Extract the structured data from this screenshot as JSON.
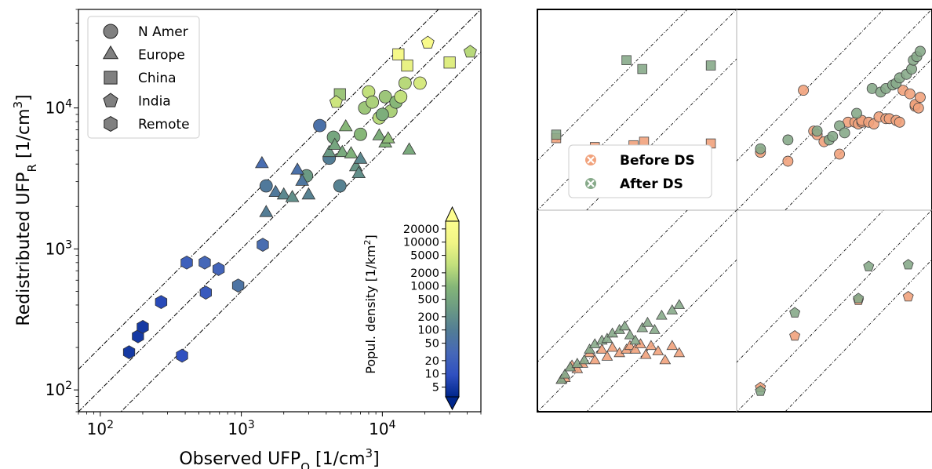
{
  "chart_data": [
    {
      "type": "scatter",
      "title": "",
      "xlabel": {
        "main": "Observed UFP",
        "sub": "O",
        "unit": " [1/cm",
        "sup": "3",
        "close": "]"
      },
      "ylabel": {
        "main": "Redistributed UFP",
        "sub": "R",
        "unit": " [1/cm",
        "sup": "3",
        "close": "]"
      },
      "x_scale": "log",
      "y_scale": "log",
      "xlim": [
        70,
        50000
      ],
      "ylim": [
        70,
        50000
      ],
      "x_ticks": [
        {
          "v": 100,
          "m": "10",
          "e": "2"
        },
        {
          "v": 1000,
          "m": "10",
          "e": "3"
        },
        {
          "v": 10000,
          "m": "10",
          "e": "4"
        }
      ],
      "y_ticks": [
        {
          "v": 100,
          "m": "10",
          "e": "2"
        },
        {
          "v": 1000,
          "m": "10",
          "e": "3"
        },
        {
          "v": 10000,
          "m": "10",
          "e": "4"
        }
      ],
      "grid": false,
      "reference_lines_ratio": [
        2,
        1,
        0.5
      ],
      "legend_position": "top-left",
      "legend": [
        {
          "label": "N Amer",
          "marker": "circle"
        },
        {
          "label": "Europe",
          "marker": "triangle"
        },
        {
          "label": "China",
          "marker": "square"
        },
        {
          "label": "India",
          "marker": "pentagon"
        },
        {
          "label": "Remote",
          "marker": "hexagon"
        }
      ],
      "colorbar": {
        "label": "Popul. density [1/km",
        "label_sup": "2",
        "label_close": "]",
        "scale": "log",
        "range": [
          3,
          30000
        ],
        "extend": "both",
        "ticks": [
          5,
          10,
          20,
          50,
          100,
          200,
          500,
          1000,
          2000,
          5000,
          10000,
          20000
        ],
        "colormap": [
          "#00268c",
          "#3050c0",
          "#4668b8",
          "#527c96",
          "#6b9a84",
          "#84b578",
          "#c2e07c",
          "#f0f585",
          "#fdfd8f"
        ]
      },
      "series": [
        {
          "name": "N Amer",
          "marker": "circle",
          "points": [
            {
              "x": 1500,
              "y": 2800,
              "d": 80
            },
            {
              "x": 2900,
              "y": 3300,
              "d": 300
            },
            {
              "x": 3600,
              "y": 7500,
              "d": 50
            },
            {
              "x": 4200,
              "y": 4400,
              "d": 100
            },
            {
              "x": 4500,
              "y": 6200,
              "d": 500
            },
            {
              "x": 5000,
              "y": 2800,
              "d": 120
            },
            {
              "x": 7000,
              "y": 6500,
              "d": 1000
            },
            {
              "x": 7500,
              "y": 10000,
              "d": 1500
            },
            {
              "x": 8000,
              "y": 13000,
              "d": 3000
            },
            {
              "x": 8500,
              "y": 11000,
              "d": 2000
            },
            {
              "x": 9500,
              "y": 8500,
              "d": 2500
            },
            {
              "x": 10500,
              "y": 12000,
              "d": 1500
            },
            {
              "x": 11500,
              "y": 9500,
              "d": 2000
            },
            {
              "x": 12500,
              "y": 11000,
              "d": 1000
            },
            {
              "x": 13500,
              "y": 12000,
              "d": 3000
            },
            {
              "x": 14500,
              "y": 15000,
              "d": 2500
            },
            {
              "x": 18500,
              "y": 15000,
              "d": 5000
            },
            {
              "x": 10000,
              "y": 9000,
              "d": 700
            }
          ]
        },
        {
          "name": "Europe",
          "marker": "triangle",
          "points": [
            {
              "x": 1400,
              "y": 4000,
              "d": 40
            },
            {
              "x": 1500,
              "y": 1800,
              "d": 100
            },
            {
              "x": 1750,
              "y": 2500,
              "d": 80
            },
            {
              "x": 2000,
              "y": 2400,
              "d": 150
            },
            {
              "x": 2300,
              "y": 2300,
              "d": 200
            },
            {
              "x": 2500,
              "y": 3600,
              "d": 50
            },
            {
              "x": 2700,
              "y": 3000,
              "d": 70
            },
            {
              "x": 3000,
              "y": 2400,
              "d": 120
            },
            {
              "x": 4200,
              "y": 4800,
              "d": 300
            },
            {
              "x": 4600,
              "y": 5400,
              "d": 500
            },
            {
              "x": 5200,
              "y": 4800,
              "d": 600
            },
            {
              "x": 5500,
              "y": 7300,
              "d": 1000
            },
            {
              "x": 6000,
              "y": 4700,
              "d": 800
            },
            {
              "x": 6500,
              "y": 3800,
              "d": 250
            },
            {
              "x": 6800,
              "y": 3400,
              "d": 200
            },
            {
              "x": 7000,
              "y": 4300,
              "d": 150
            },
            {
              "x": 9500,
              "y": 6300,
              "d": 700
            },
            {
              "x": 10500,
              "y": 5600,
              "d": 900
            },
            {
              "x": 11000,
              "y": 6000,
              "d": 1200
            },
            {
              "x": 15500,
              "y": 5000,
              "d": 600
            }
          ]
        },
        {
          "name": "China",
          "marker": "square",
          "points": [
            {
              "x": 5000,
              "y": 12500,
              "d": 1500
            },
            {
              "x": 13000,
              "y": 24000,
              "d": 15000
            },
            {
              "x": 15000,
              "y": 20000,
              "d": 8000
            },
            {
              "x": 30000,
              "y": 21000,
              "d": 6000
            }
          ]
        },
        {
          "name": "India",
          "marker": "pentagon",
          "points": [
            {
              "x": 4700,
              "y": 11000,
              "d": 4000
            },
            {
              "x": 21000,
              "y": 29000,
              "d": 20000
            },
            {
              "x": 42000,
              "y": 25000,
              "d": 2500
            }
          ]
        },
        {
          "name": "Remote",
          "marker": "hexagon",
          "points": [
            {
              "x": 160,
              "y": 185,
              "d": 5
            },
            {
              "x": 185,
              "y": 240,
              "d": 5
            },
            {
              "x": 200,
              "y": 280,
              "d": 5
            },
            {
              "x": 270,
              "y": 420,
              "d": 8
            },
            {
              "x": 380,
              "y": 175,
              "d": 10
            },
            {
              "x": 410,
              "y": 800,
              "d": 20
            },
            {
              "x": 550,
              "y": 800,
              "d": 30
            },
            {
              "x": 560,
              "y": 490,
              "d": 15
            },
            {
              "x": 690,
              "y": 720,
              "d": 25
            },
            {
              "x": 950,
              "y": 550,
              "d": 60
            },
            {
              "x": 1420,
              "y": 1070,
              "d": 40
            }
          ]
        }
      ]
    },
    {
      "type": "scatter",
      "title": "",
      "axes_shown": false,
      "legend_position": "center-left",
      "legend": [
        {
          "label": "Before DS",
          "color": "#f1a27c"
        },
        {
          "label": "After DS",
          "color": "#87aa8a"
        }
      ],
      "panels": [
        {
          "name": "China",
          "marker": "square",
          "before": [
            [
              0.04,
              0.34
            ],
            [
              0.26,
              0.29
            ],
            [
              0.48,
              0.3
            ],
            [
              0.54,
              0.32
            ],
            [
              0.92,
              0.31
            ]
          ],
          "after": [
            [
              0.04,
              0.36
            ],
            [
              0.26,
              0.26
            ],
            [
              0.44,
              0.78
            ],
            [
              0.53,
              0.73
            ],
            [
              0.92,
              0.75
            ]
          ]
        },
        {
          "name": "N Amer",
          "marker": "circle",
          "before": [
            [
              0.07,
              0.26
            ],
            [
              0.23,
              0.21
            ],
            [
              0.32,
              0.61
            ],
            [
              0.38,
              0.38
            ],
            [
              0.4,
              0.36
            ],
            [
              0.44,
              0.32
            ],
            [
              0.53,
              0.25
            ],
            [
              0.58,
              0.43
            ],
            [
              0.62,
              0.43
            ],
            [
              0.64,
              0.42
            ],
            [
              0.66,
              0.43
            ],
            [
              0.66,
              0.44
            ],
            [
              0.7,
              0.43
            ],
            [
              0.73,
              0.42
            ],
            [
              0.76,
              0.46
            ],
            [
              0.8,
              0.45
            ],
            [
              0.82,
              0.45
            ],
            [
              0.86,
              0.44
            ],
            [
              0.88,
              0.43
            ],
            [
              0.9,
              0.61
            ],
            [
              0.94,
              0.59
            ],
            [
              0.97,
              0.52
            ],
            [
              0.97,
              0.53
            ],
            [
              0.99,
              0.51
            ],
            [
              1.0,
              0.57
            ]
          ],
          "after": [
            [
              0.07,
              0.28
            ],
            [
              0.23,
              0.33
            ],
            [
              0.4,
              0.38
            ],
            [
              0.47,
              0.33
            ],
            [
              0.49,
              0.35
            ],
            [
              0.53,
              0.41
            ],
            [
              0.56,
              0.37
            ],
            [
              0.63,
              0.48
            ],
            [
              0.72,
              0.62
            ],
            [
              0.77,
              0.6
            ],
            [
              0.8,
              0.62
            ],
            [
              0.84,
              0.64
            ],
            [
              0.86,
              0.65
            ],
            [
              0.88,
              0.68
            ],
            [
              0.92,
              0.7
            ],
            [
              0.95,
              0.73
            ],
            [
              0.96,
              0.78
            ],
            [
              0.98,
              0.8
            ],
            [
              1.0,
              0.83
            ]
          ]
        },
        {
          "name": "Europe",
          "marker": "triangle",
          "before": [
            [
              0.07,
              0.11
            ],
            [
              0.09,
              0.12
            ],
            [
              0.13,
              0.19
            ],
            [
              0.16,
              0.17
            ],
            [
              0.19,
              0.2
            ],
            [
              0.23,
              0.26
            ],
            [
              0.26,
              0.22
            ],
            [
              0.3,
              0.28
            ],
            [
              0.33,
              0.24
            ],
            [
              0.36,
              0.29
            ],
            [
              0.4,
              0.26
            ],
            [
              0.44,
              0.28
            ],
            [
              0.46,
              0.3
            ],
            [
              0.49,
              0.28
            ],
            [
              0.52,
              0.31
            ],
            [
              0.55,
              0.25
            ],
            [
              0.58,
              0.3
            ],
            [
              0.62,
              0.27
            ],
            [
              0.66,
              0.22
            ],
            [
              0.7,
              0.3
            ],
            [
              0.74,
              0.26
            ]
          ],
          "after": [
            [
              0.07,
              0.11
            ],
            [
              0.09,
              0.14
            ],
            [
              0.12,
              0.18
            ],
            [
              0.16,
              0.2
            ],
            [
              0.2,
              0.22
            ],
            [
              0.23,
              0.28
            ],
            [
              0.26,
              0.31
            ],
            [
              0.3,
              0.33
            ],
            [
              0.33,
              0.34
            ],
            [
              0.36,
              0.37
            ],
            [
              0.4,
              0.39
            ],
            [
              0.43,
              0.41
            ],
            [
              0.46,
              0.36
            ],
            [
              0.49,
              0.33
            ],
            [
              0.53,
              0.4
            ],
            [
              0.56,
              0.43
            ],
            [
              0.6,
              0.39
            ],
            [
              0.64,
              0.47
            ],
            [
              0.7,
              0.5
            ],
            [
              0.74,
              0.53
            ]
          ]
        },
        {
          "name": "India",
          "marker": "pentagon",
          "before": [
            [
              0.07,
              0.07
            ],
            [
              0.27,
              0.36
            ],
            [
              0.64,
              0.56
            ],
            [
              0.93,
              0.58
            ]
          ],
          "after": [
            [
              0.07,
              0.05
            ],
            [
              0.27,
              0.49
            ],
            [
              0.64,
              0.57
            ],
            [
              0.7,
              0.75
            ],
            [
              0.93,
              0.76
            ]
          ]
        }
      ]
    }
  ]
}
